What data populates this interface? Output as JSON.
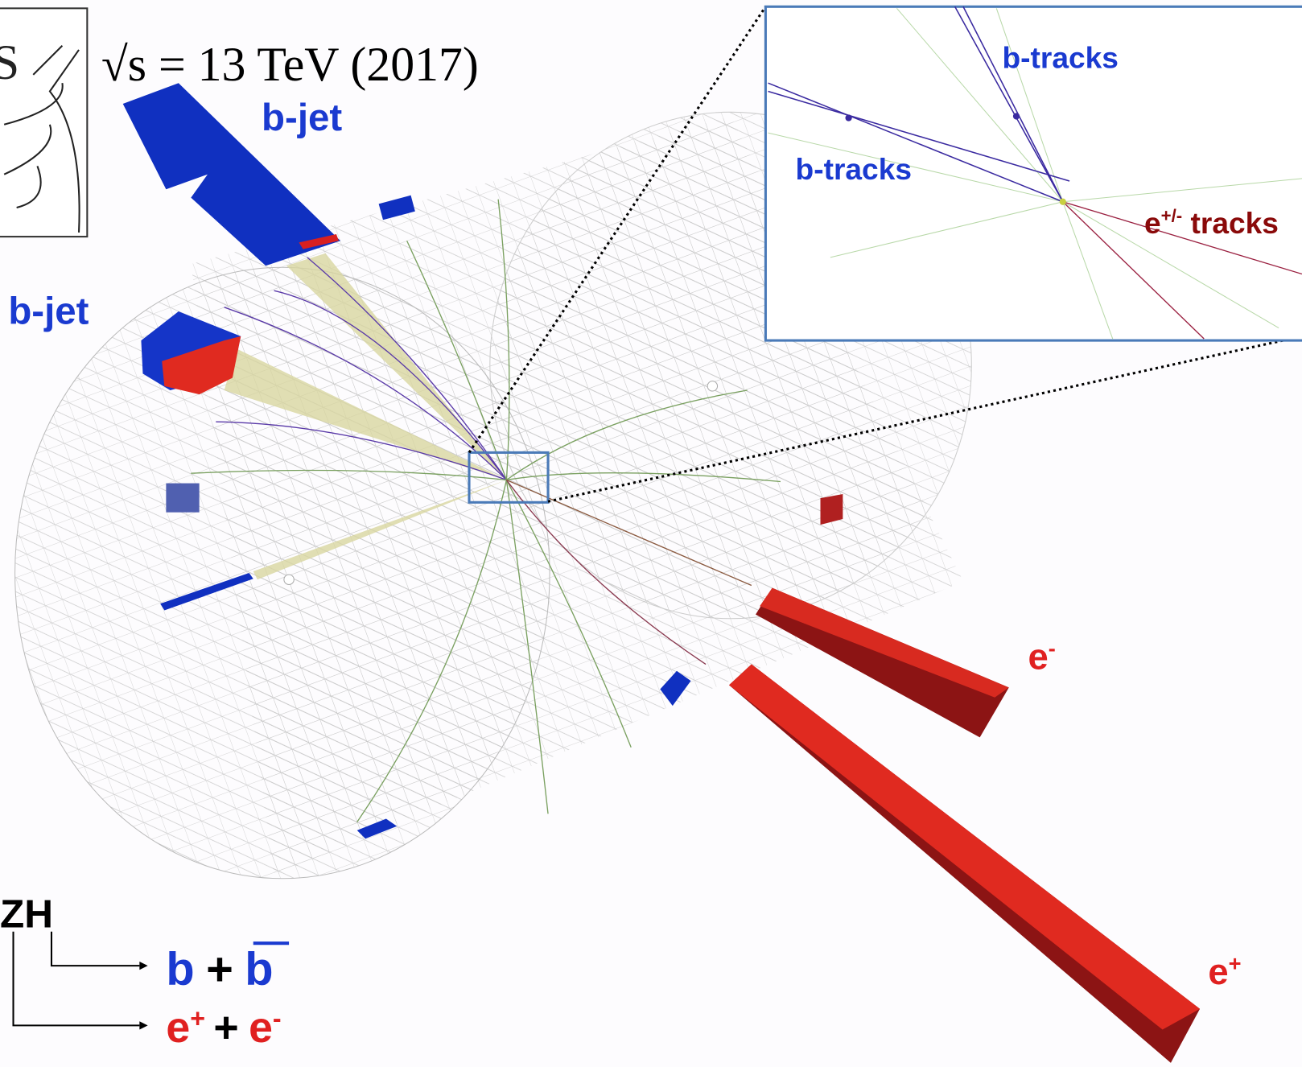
{
  "header": {
    "logo_fragment": "S",
    "energy": "√s = 13 TeV (2017)"
  },
  "labels": {
    "b_jet_top": "b-jet",
    "b_jet_left": "b-jet",
    "electron": {
      "base": "e",
      "sup": "-"
    },
    "positron": {
      "base": "e",
      "sup": "+"
    }
  },
  "inset": {
    "b_tracks_top": "b-tracks",
    "b_tracks_left": "b-tracks",
    "e_tracks": {
      "base": "e",
      "sup": "+/-",
      "rest": " tracks"
    }
  },
  "legend": {
    "process": "ZH",
    "decay_1": {
      "b": "b",
      "plus": "+",
      "bbar": "b"
    },
    "decay_2": {
      "e1": "e",
      "sup1": "+",
      "plus": "+",
      "e2": "e",
      "sup2": "-"
    }
  }
}
